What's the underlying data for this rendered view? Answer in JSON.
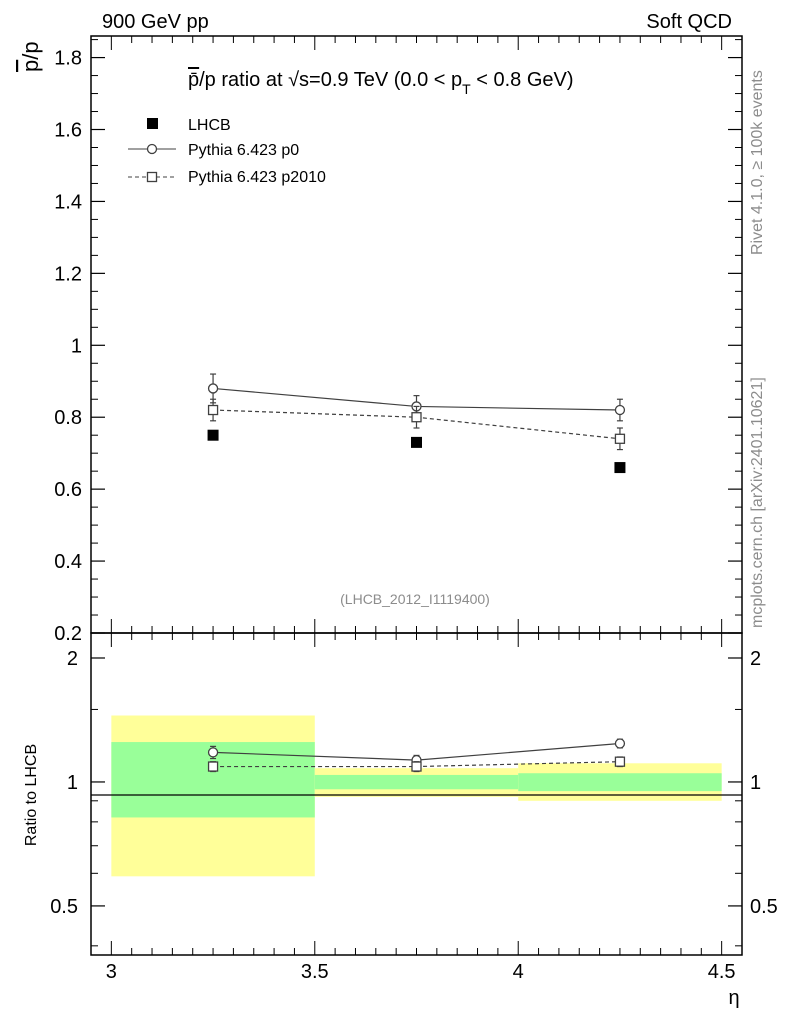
{
  "header": {
    "left": "900 GeV pp",
    "right": "Soft QCD"
  },
  "side_text": {
    "rivet": "Rivet 4.1.0, ≥ 100k events",
    "mcplots": "mcplots.cern.ch [arXiv:2401.10621]"
  },
  "chart_data": [
    {
      "type": "scatter",
      "panel": "main",
      "title_parts": {
        "pbar": "p̄",
        "after_pbar": "/p ratio at ",
        "sqrt": "√s",
        "mid": "=0.9 TeV (0.0 < p",
        "sub": "T",
        "end": " < 0.8 GeV)"
      },
      "ylabel": {
        "over": "p",
        "rest": "/p"
      },
      "analysis_tag": "(LHCB_2012_I1119400)",
      "xlim": [
        2.95,
        4.55
      ],
      "ylim": [
        0.2,
        1.86
      ],
      "yticks": [
        0.2,
        0.4,
        0.6,
        0.8,
        1.0,
        1.2,
        1.4,
        1.6,
        1.8
      ],
      "ytick_labels": [
        "0.2",
        "0.4",
        "0.6",
        "0.8",
        "1",
        "1.2",
        "1.4",
        "1.6",
        "1.8"
      ],
      "x": [
        3.25,
        3.75,
        4.25
      ],
      "series": [
        {
          "name": "LHCB",
          "style": "data",
          "values": [
            0.75,
            0.73,
            0.66
          ]
        },
        {
          "name": "Pythia 6.423 p0",
          "style": "solid-circle",
          "values": [
            0.88,
            0.83,
            0.82
          ],
          "errors": [
            0.04,
            0.03,
            0.03
          ]
        },
        {
          "name": "Pythia 6.423 p2010",
          "style": "dashed-square",
          "values": [
            0.82,
            0.8,
            0.74
          ],
          "errors": [
            0.03,
            0.03,
            0.03
          ]
        }
      ]
    },
    {
      "type": "scatter",
      "panel": "ratio",
      "ylabel": "Ratio to LHCB",
      "xlabel": "η",
      "xlim": [
        2.95,
        4.55
      ],
      "ylim": [
        0.38,
        2.3
      ],
      "yticks": [
        0.5,
        1,
        2
      ],
      "ytick_labels": [
        "0.5",
        "1",
        "2"
      ],
      "xticks": [
        3,
        3.5,
        4,
        4.5
      ],
      "xtick_labels": [
        "3",
        "3.5",
        "4",
        "4.5"
      ],
      "bands": [
        {
          "x0": 3.0,
          "x1": 3.5,
          "yellow": [
            0.59,
            1.45
          ],
          "green": [
            0.82,
            1.25
          ]
        },
        {
          "x0": 3.5,
          "x1": 4.0,
          "yellow": [
            0.92,
            1.08
          ],
          "green": [
            0.96,
            1.04
          ]
        },
        {
          "x0": 4.0,
          "x1": 4.5,
          "yellow": [
            0.9,
            1.11
          ],
          "green": [
            0.95,
            1.05
          ]
        }
      ],
      "x": [
        3.25,
        3.75,
        4.25
      ],
      "series": [
        {
          "name": "Pythia 6.423 p0",
          "style": "solid-circle",
          "values": [
            1.18,
            1.13,
            1.24
          ],
          "errors": [
            0.04,
            0.03,
            0.03
          ]
        },
        {
          "name": "Pythia 6.423 p2010",
          "style": "dashed-square",
          "values": [
            1.09,
            1.09,
            1.12
          ],
          "errors": [
            0.03,
            0.03,
            0.03
          ]
        }
      ]
    }
  ]
}
